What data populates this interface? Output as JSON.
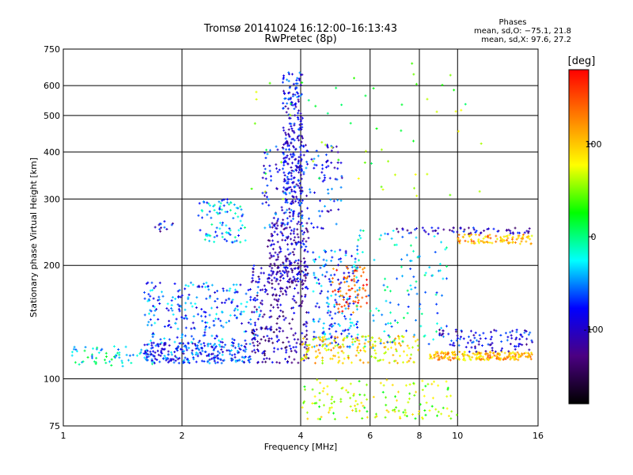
{
  "chart_data": {
    "type": "scatter",
    "title": "Tromsø 20141024 16:12:00–16:13:43",
    "subtitle": "RwPretec (8p)",
    "xlabel": "Frequency [MHz]",
    "ylabel": "Stationary phase Virtual Height [km]",
    "x_scale": "log",
    "y_scale": "log",
    "xlim": [
      1,
      16
    ],
    "ylim": [
      75,
      750
    ],
    "x_ticks": [
      1,
      2,
      4,
      6,
      8,
      10,
      16
    ],
    "y_ticks": [
      75,
      100,
      200,
      300,
      400,
      500,
      600,
      750
    ],
    "grid": true,
    "phases_box": {
      "title": "Phases",
      "line_o": "mean, sd,O: −75.1, 21.8",
      "line_x": "mean, sd,X:  97.6, 27.2"
    },
    "colorbar": {
      "label": "[deg]",
      "min": -180,
      "max": 180,
      "ticks": [
        -100,
        0,
        100
      ],
      "colormap": [
        "#000000",
        "#4b0082",
        "#0000ff",
        "#00ffff",
        "#00ff00",
        "#ffff00",
        "#ff8000",
        "#ff0000"
      ]
    },
    "clusters": [
      {
        "fmin": 1.05,
        "fmax": 1.7,
        "hmin": 108,
        "hmax": 122,
        "phase": -20,
        "n": 60
      },
      {
        "fmin": 1.6,
        "fmax": 3.0,
        "hmin": 110,
        "hmax": 125,
        "phase": -70,
        "n": 260
      },
      {
        "fmin": 1.6,
        "fmax": 3.2,
        "hmin": 125,
        "hmax": 180,
        "phase": -60,
        "n": 240
      },
      {
        "fmin": 2.2,
        "fmax": 2.9,
        "hmin": 230,
        "hmax": 300,
        "phase": -40,
        "n": 90
      },
      {
        "fmin": 1.7,
        "fmax": 1.9,
        "hmin": 245,
        "hmax": 262,
        "phase": -90,
        "n": 12
      },
      {
        "fmin": 3.0,
        "fmax": 4.2,
        "hmin": 110,
        "hmax": 200,
        "phase": -110,
        "n": 260
      },
      {
        "fmin": 3.3,
        "fmax": 4.2,
        "hmin": 180,
        "hmax": 260,
        "phase": -100,
        "n": 180
      },
      {
        "fmin": 3.6,
        "fmax": 4.05,
        "hmin": 260,
        "hmax": 650,
        "phase": -85,
        "n": 260
      },
      {
        "fmin": 3.2,
        "fmax": 5.1,
        "hmin": 250,
        "hmax": 420,
        "phase": -80,
        "n": 160
      },
      {
        "fmin": 4.3,
        "fmax": 5.6,
        "hmin": 120,
        "hmax": 220,
        "phase": -60,
        "n": 180
      },
      {
        "fmin": 4.8,
        "fmax": 5.9,
        "hmin": 150,
        "hmax": 200,
        "phase": 150,
        "n": 70
      },
      {
        "fmin": 4.0,
        "fmax": 8.0,
        "hmin": 110,
        "hmax": 130,
        "phase": 90,
        "n": 180
      },
      {
        "fmin": 5.5,
        "fmax": 9.5,
        "hmin": 120,
        "hmax": 250,
        "phase": -30,
        "n": 120
      },
      {
        "fmin": 8.5,
        "fmax": 15.5,
        "hmin": 112,
        "hmax": 118,
        "phase": 110,
        "n": 200
      },
      {
        "fmin": 9.0,
        "fmax": 15.5,
        "hmin": 118,
        "hmax": 135,
        "phase": -90,
        "n": 100
      },
      {
        "fmin": 10.0,
        "fmax": 15.5,
        "hmin": 228,
        "hmax": 242,
        "phase": 110,
        "n": 90
      },
      {
        "fmin": 7.0,
        "fmax": 15.5,
        "hmin": 242,
        "hmax": 252,
        "phase": -100,
        "n": 60
      },
      {
        "fmin": 4.0,
        "fmax": 10.0,
        "hmin": 78,
        "hmax": 100,
        "phase": 60,
        "n": 140
      },
      {
        "fmin": 3.0,
        "fmax": 12.0,
        "hmin": 300,
        "hmax": 700,
        "phase": 40,
        "n": 60
      }
    ]
  }
}
